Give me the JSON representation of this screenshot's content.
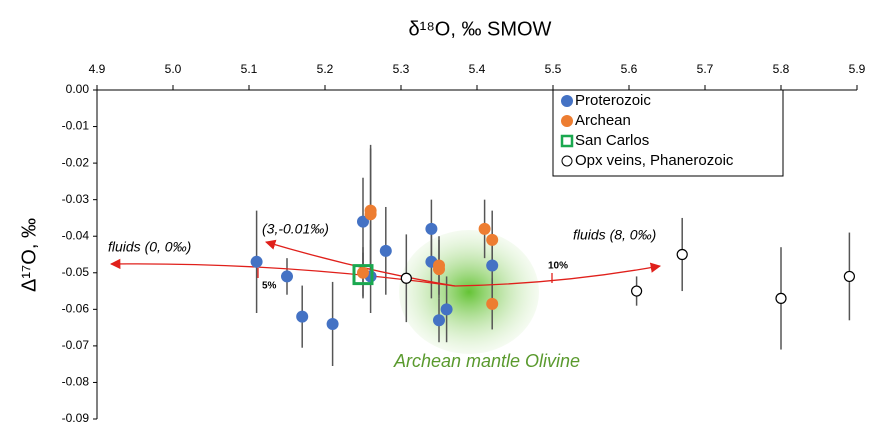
{
  "chart_data": {
    "type": "scatter",
    "title": "δ¹⁸O, ‰ SMOW",
    "y_label": "Δ¹⁷O, ‰",
    "xlim": [
      4.9,
      5.9
    ],
    "xticks": [
      4.9,
      {
        "value": 5,
        "label": "5.0"
      },
      5.1,
      5.2,
      5.3,
      5.4,
      5.5,
      5.6,
      5.7,
      5.8,
      5.9
    ],
    "ylim": [
      -0.09,
      0
    ],
    "yticks": [
      {
        "value": 0,
        "label": "0.00"
      },
      -0.01,
      -0.02,
      -0.03,
      -0.04,
      -0.05,
      -0.06,
      -0.07,
      -0.08,
      -0.09
    ],
    "legend": "top-right",
    "series": [
      {
        "name": "Proterozoic",
        "color": "#4472c4",
        "marker": "filled-circle",
        "x": [
          5.11,
          5.15,
          5.17,
          5.21,
          5.25,
          5.28,
          5.34,
          5.34,
          5.42,
          5.36,
          5.35,
          5.26
        ],
        "y": [
          -0.047,
          -0.051,
          -0.062,
          -0.064,
          -0.036,
          -0.044,
          -0.038,
          -0.047,
          -0.048,
          -0.06,
          -0.063,
          -0.051
        ],
        "errors": [
          0.014,
          0.005,
          0.0085,
          0.0115,
          0.012,
          0.012,
          0.008,
          0.01,
          0.009,
          0.009,
          0.006,
          0.01
        ]
      },
      {
        "name": "Archean",
        "color": "#ed7d31",
        "marker": "filled-circle",
        "x": [
          5.26,
          5.26,
          5.25,
          5.35,
          5.35,
          5.41,
          5.42,
          5.42
        ],
        "y": [
          -0.034,
          -0.033,
          -0.05,
          -0.048,
          -0.049,
          -0.038,
          -0.041,
          -0.0585
        ],
        "errors": [
          0.018,
          0.018,
          0.007,
          0.008,
          0.008,
          0.008,
          0.008,
          0.007
        ]
      },
      {
        "name": "San Carlos",
        "color": "#1aa84f",
        "marker": "open-square",
        "x": [
          5.25
        ],
        "y": [
          -0.0505
        ],
        "errors": [
          0.006
        ]
      },
      {
        "name": "Opx veins, Phanerozoic",
        "color": "#000000",
        "marker": "open-circle",
        "x": [
          5.307,
          5.61,
          5.67,
          5.8,
          5.89
        ],
        "y": [
          -0.0515,
          -0.055,
          -0.045,
          -0.057,
          -0.051
        ],
        "errors": [
          0.012,
          0.004,
          0.01,
          0.014,
          0.012
        ]
      }
    ],
    "annotations": [
      "fluids (0, 0‰)",
      "(3,-0.01‰)",
      "fluids (8, 0‰)",
      "5%",
      "10%",
      "Archean mantle Olivine"
    ]
  }
}
